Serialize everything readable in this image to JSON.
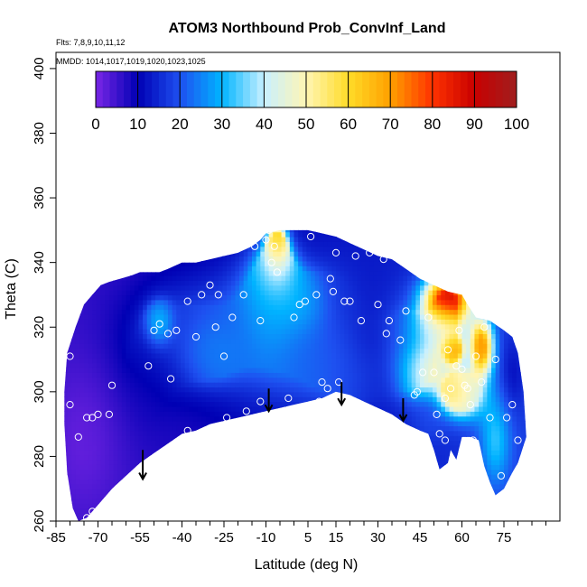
{
  "chart_data": {
    "type": "heatmap",
    "title": "ATOM3 Northbound Prob_ConvInf_Land",
    "annotations": {
      "flights": "Flts: 7,8,9,10,11,12",
      "dates": "MMDD: 1014,1017,1019,1020,1023,1025"
    },
    "xlabel": "Latitude (deg N)",
    "ylabel": "Theta (C)",
    "xlim": [
      -85,
      95
    ],
    "ylim": [
      260,
      405
    ],
    "x_ticks": [
      -85,
      -70,
      -55,
      -40,
      -25,
      -10,
      5,
      15,
      30,
      45,
      60,
      75
    ],
    "x_minor_ticks": [
      -80,
      -75,
      -65,
      -60,
      -50,
      -45,
      -35,
      -30,
      -20,
      -15,
      -5,
      0,
      10,
      20,
      25,
      35,
      40,
      50,
      55,
      65,
      70,
      80,
      85,
      90
    ],
    "y_ticks": [
      260,
      280,
      300,
      320,
      340,
      360,
      380,
      400
    ],
    "colorbar": {
      "ticks": [
        0,
        10,
        20,
        30,
        40,
        50,
        60,
        70,
        80,
        90,
        100
      ],
      "colors": [
        "#7a26e6",
        "#0000b4",
        "#1e50f0",
        "#00b4ff",
        "#c8f0ff",
        "#fff5b4",
        "#ffdc28",
        "#ffa000",
        "#ff3200",
        "#c80000",
        "#a01e1e"
      ]
    },
    "upper_boundary": [
      [
        -81,
        312
      ],
      [
        -78,
        320
      ],
      [
        -75,
        327
      ],
      [
        -72,
        330
      ],
      [
        -69,
        333
      ],
      [
        -66,
        334
      ],
      [
        -62,
        335
      ],
      [
        -58,
        336
      ],
      [
        -55,
        337
      ],
      [
        -52,
        337
      ],
      [
        -48,
        337
      ],
      [
        -45,
        338
      ],
      [
        -40,
        340
      ],
      [
        -35,
        340
      ],
      [
        -30,
        341
      ],
      [
        -25,
        342
      ],
      [
        -20,
        343
      ],
      [
        -15,
        345
      ],
      [
        -12,
        347
      ],
      [
        -10,
        349
      ],
      [
        -5,
        350
      ],
      [
        0,
        350
      ],
      [
        5,
        350
      ],
      [
        10,
        349
      ],
      [
        15,
        348
      ],
      [
        20,
        346
      ],
      [
        25,
        344
      ],
      [
        30,
        342
      ],
      [
        35,
        341
      ],
      [
        40,
        338
      ],
      [
        45,
        335
      ],
      [
        50,
        333
      ],
      [
        55,
        331
      ],
      [
        60,
        330
      ],
      [
        62,
        327
      ],
      [
        65,
        323
      ],
      [
        70,
        322
      ],
      [
        75,
        319
      ],
      [
        78,
        317
      ],
      [
        80,
        312
      ],
      [
        82,
        300
      ],
      [
        83,
        286
      ]
    ],
    "lower_boundary": [
      [
        83,
        286
      ],
      [
        80,
        278
      ],
      [
        78,
        275
      ],
      [
        75,
        270
      ],
      [
        72,
        268
      ],
      [
        70,
        272
      ],
      [
        68,
        277
      ],
      [
        66,
        285
      ],
      [
        63,
        286
      ],
      [
        60,
        286
      ],
      [
        58,
        279
      ],
      [
        56,
        282
      ],
      [
        55,
        278
      ],
      [
        52,
        276
      ],
      [
        50,
        282
      ],
      [
        48,
        287
      ],
      [
        45,
        288
      ],
      [
        40,
        290
      ],
      [
        35,
        293
      ],
      [
        30,
        295
      ],
      [
        25,
        297
      ],
      [
        20,
        299
      ],
      [
        15,
        300
      ],
      [
        10,
        298
      ],
      [
        5,
        297
      ],
      [
        0,
        296
      ],
      [
        -5,
        295
      ],
      [
        -10,
        294
      ],
      [
        -15,
        293
      ],
      [
        -20,
        292
      ],
      [
        -25,
        291
      ],
      [
        -30,
        290
      ],
      [
        -35,
        288
      ],
      [
        -40,
        287
      ],
      [
        -45,
        284
      ],
      [
        -50,
        281
      ],
      [
        -55,
        278
      ],
      [
        -60,
        274
      ],
      [
        -65,
        270
      ],
      [
        -70,
        265
      ],
      [
        -74,
        261
      ],
      [
        -77,
        260
      ],
      [
        -79,
        264
      ],
      [
        -81,
        275
      ],
      [
        -82,
        290
      ],
      [
        -82,
        300
      ]
    ],
    "field_blobs": [
      {
        "x": -75,
        "y": 285,
        "sx": 10,
        "sy": 18,
        "v": 2
      },
      {
        "x": -52,
        "y": 300,
        "sx": 10,
        "sy": 15,
        "v": 8
      },
      {
        "x": -40,
        "y": 318,
        "sx": 14,
        "sy": 12,
        "v": 18
      },
      {
        "x": -48,
        "y": 321,
        "sx": 3,
        "sy": 4,
        "v": 45
      },
      {
        "x": -30,
        "y": 313,
        "sx": 7,
        "sy": 6,
        "v": 28
      },
      {
        "x": -12,
        "y": 320,
        "sx": 12,
        "sy": 14,
        "v": 24
      },
      {
        "x": -8,
        "y": 330,
        "sx": 6,
        "sy": 10,
        "v": 36
      },
      {
        "x": -6,
        "y": 345,
        "sx": 2.5,
        "sy": 5,
        "v": 72
      },
      {
        "x": -6,
        "y": 338,
        "sx": 4,
        "sy": 5,
        "v": 45
      },
      {
        "x": 3,
        "y": 328,
        "sx": 6,
        "sy": 6,
        "v": 35
      },
      {
        "x": 8,
        "y": 312,
        "sx": 10,
        "sy": 10,
        "v": 22
      },
      {
        "x": 15,
        "y": 330,
        "sx": 8,
        "sy": 10,
        "v": 15
      },
      {
        "x": 20,
        "y": 305,
        "sx": 8,
        "sy": 6,
        "v": 20
      },
      {
        "x": 30,
        "y": 310,
        "sx": 8,
        "sy": 12,
        "v": 12
      },
      {
        "x": 40,
        "y": 315,
        "sx": 6,
        "sy": 10,
        "v": 22
      },
      {
        "x": 46,
        "y": 308,
        "sx": 6,
        "sy": 6,
        "v": 55
      },
      {
        "x": 55,
        "y": 329,
        "sx": 6,
        "sy": 5,
        "v": 88
      },
      {
        "x": 52,
        "y": 320,
        "sx": 7,
        "sy": 4,
        "v": 45
      },
      {
        "x": 57,
        "y": 313,
        "sx": 2.5,
        "sy": 3,
        "v": 72
      },
      {
        "x": 58,
        "y": 300,
        "sx": 4,
        "sy": 4,
        "v": 62
      },
      {
        "x": 67,
        "y": 314,
        "sx": 3,
        "sy": 6,
        "v": 72
      },
      {
        "x": 62,
        "y": 300,
        "sx": 5,
        "sy": 6,
        "v": 40
      },
      {
        "x": 72,
        "y": 285,
        "sx": 4,
        "sy": 10,
        "v": 32
      },
      {
        "x": 78,
        "y": 305,
        "sx": 3,
        "sy": 8,
        "v": 12
      },
      {
        "x": 49,
        "y": 290,
        "sx": 5,
        "sy": 4,
        "v": 18
      }
    ],
    "observations": [
      [
        -80,
        311
      ],
      [
        -80,
        296
      ],
      [
        -77,
        286
      ],
      [
        -74,
        292
      ],
      [
        -72,
        292
      ],
      [
        -70,
        293
      ],
      [
        -66,
        293
      ],
      [
        -74,
        261
      ],
      [
        -72,
        263
      ],
      [
        -65,
        302
      ],
      [
        -63,
        270
      ],
      [
        -52,
        308
      ],
      [
        -48,
        321
      ],
      [
        -50,
        319
      ],
      [
        -45,
        318
      ],
      [
        -44,
        304
      ],
      [
        -42,
        319
      ],
      [
        -38,
        328
      ],
      [
        -38,
        288
      ],
      [
        -35,
        317
      ],
      [
        -33,
        330
      ],
      [
        -32,
        287
      ],
      [
        -30,
        333
      ],
      [
        -28,
        320
      ],
      [
        -27,
        330
      ],
      [
        -25,
        311
      ],
      [
        -24,
        292
      ],
      [
        -22,
        323
      ],
      [
        -18,
        330
      ],
      [
        -17,
        294
      ],
      [
        -14,
        345
      ],
      [
        -12,
        322
      ],
      [
        -12,
        297
      ],
      [
        -10,
        347
      ],
      [
        -9,
        350
      ],
      [
        -8,
        340
      ],
      [
        -7,
        345
      ],
      [
        -6,
        337
      ],
      [
        -2,
        298
      ],
      [
        0,
        323
      ],
      [
        2,
        327
      ],
      [
        4,
        328
      ],
      [
        6,
        348
      ],
      [
        8,
        330
      ],
      [
        9,
        297
      ],
      [
        10,
        303
      ],
      [
        12,
        301
      ],
      [
        13,
        335
      ],
      [
        14,
        331
      ],
      [
        15,
        343
      ],
      [
        16,
        303
      ],
      [
        18,
        328
      ],
      [
        20,
        328
      ],
      [
        22,
        342
      ],
      [
        24,
        322
      ],
      [
        27,
        343
      ],
      [
        30,
        327
      ],
      [
        32,
        341
      ],
      [
        33,
        318
      ],
      [
        34,
        322
      ],
      [
        38,
        316
      ],
      [
        40,
        325
      ],
      [
        41,
        340
      ],
      [
        43,
        299
      ],
      [
        44,
        300
      ],
      [
        46,
        306
      ],
      [
        48,
        323
      ],
      [
        50,
        306
      ],
      [
        51,
        293
      ],
      [
        52,
        287
      ],
      [
        54,
        298
      ],
      [
        54,
        285
      ],
      [
        55,
        313
      ],
      [
        56,
        301
      ],
      [
        58,
        308
      ],
      [
        59,
        319
      ],
      [
        60,
        307
      ],
      [
        61,
        302
      ],
      [
        62,
        301
      ],
      [
        63,
        296
      ],
      [
        64,
        285
      ],
      [
        65,
        311
      ],
      [
        67,
        303
      ],
      [
        68,
        320
      ],
      [
        70,
        292
      ],
      [
        72,
        310
      ],
      [
        74,
        274
      ],
      [
        76,
        292
      ],
      [
        78,
        296
      ],
      [
        80,
        285
      ]
    ],
    "arrows": [
      {
        "x": -54,
        "top": 282,
        "bottom": 273
      },
      {
        "x": -9,
        "top": 301,
        "bottom": 294
      },
      {
        "x": 17,
        "top": 303,
        "bottom": 296
      },
      {
        "x": 39,
        "top": 298,
        "bottom": 291
      }
    ]
  }
}
